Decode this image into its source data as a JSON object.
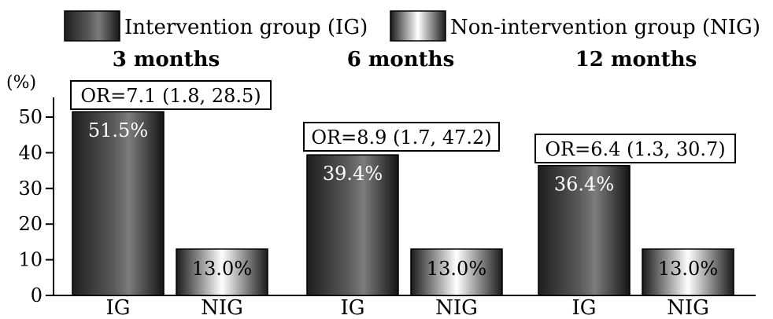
{
  "legend": {
    "items": [
      {
        "label": "Intervention group (IG)",
        "swatch": "dark-gradient"
      },
      {
        "label": "Non-intervention group (NIG)",
        "swatch": "light-gradient"
      }
    ]
  },
  "chart_data": {
    "type": "bar",
    "ylabel": "(%)",
    "ylim": [
      0,
      55
    ],
    "yticks": [
      0,
      10,
      20,
      30,
      40,
      50
    ],
    "grid": false,
    "legend_position": "top",
    "series": [
      {
        "name": "Intervention group (IG)",
        "short": "IG"
      },
      {
        "name": "Non-intervention group (NIG)",
        "short": "NIG"
      }
    ],
    "groups": [
      {
        "label": "3 months",
        "categories": [
          "IG",
          "NIG"
        ],
        "values": [
          51.5,
          13.0
        ],
        "value_labels": [
          "51.5%",
          "13.0%"
        ],
        "or_label": "OR=7.1 (1.8, 28.5)"
      },
      {
        "label": "6 months",
        "categories": [
          "IG",
          "NIG"
        ],
        "values": [
          39.4,
          13.0
        ],
        "value_labels": [
          "39.4%",
          "13.0%"
        ],
        "or_label": "OR=8.9 (1.7, 47.2)"
      },
      {
        "label": "12 months",
        "categories": [
          "IG",
          "NIG"
        ],
        "values": [
          36.4,
          13.0
        ],
        "value_labels": [
          "36.4%",
          "13.0%"
        ],
        "or_label": "OR=6.4 (1.3, 30.7)"
      }
    ]
  }
}
